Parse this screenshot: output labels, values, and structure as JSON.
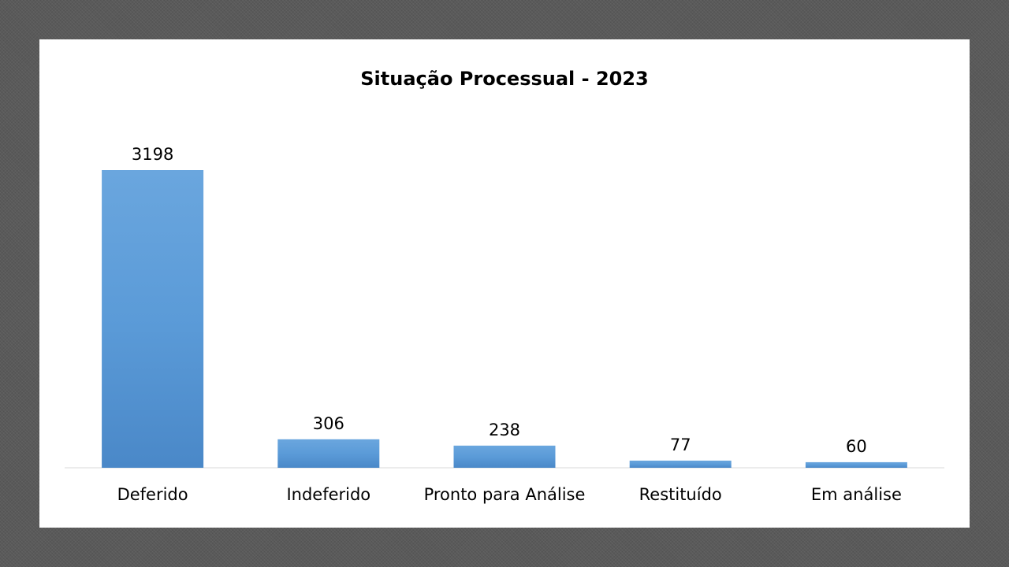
{
  "chart_data": {
    "type": "bar",
    "title": "Situação Processual - 2023",
    "categories": [
      "Deferido",
      "Indeferido",
      "Pronto para Análise",
      "Restituído",
      "Em análise"
    ],
    "values": [
      3198,
      306,
      238,
      77,
      60
    ],
    "xlabel": "",
    "ylabel": "",
    "ylim": [
      0,
      3198
    ],
    "grid": false,
    "legend": "none",
    "bar_color": "#5b9bd5"
  }
}
